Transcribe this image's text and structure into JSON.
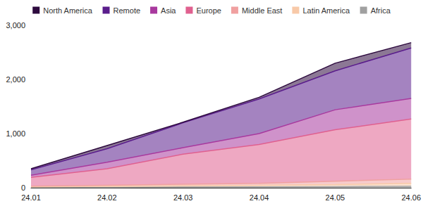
{
  "chart_data": {
    "type": "area",
    "stacked": true,
    "legend": "top",
    "grid": false,
    "categories": [
      "24.01",
      "24.02",
      "24.03",
      "24.04",
      "24.05",
      "24.06"
    ],
    "ylim": [
      0,
      3000
    ],
    "yticks": [
      0,
      {
        "value": 1000,
        "label": "1,000"
      },
      {
        "value": 2000,
        "label": "2,000"
      },
      {
        "value": 3000,
        "label": "3,000"
      }
    ],
    "series": [
      {
        "name": "North America",
        "color": "#2d0a3e",
        "values": [
          20,
          60,
          10,
          30,
          140,
          100
        ]
      },
      {
        "name": "Remote",
        "color": "#5a1d8c",
        "values": [
          100,
          250,
          460,
          640,
          720,
          930
        ]
      },
      {
        "name": "Asia",
        "color": "#a8399e",
        "values": [
          40,
          120,
          120,
          200,
          370,
          380
        ]
      },
      {
        "name": "Europe",
        "color": "#e0608f",
        "values": [
          160,
          305,
          555,
          720,
          950,
          1110
        ]
      },
      {
        "name": "Middle East",
        "color": "#f0a0a0",
        "values": [
          15,
          20,
          30,
          35,
          60,
          80
        ]
      },
      {
        "name": "Latin America",
        "color": "#f8c9a8",
        "values": [
          10,
          17,
          23,
          30,
          40,
          55
        ]
      },
      {
        "name": "Africa",
        "color": "#a0a0a0",
        "values": [
          5,
          8,
          12,
          15,
          20,
          25
        ]
      }
    ]
  }
}
